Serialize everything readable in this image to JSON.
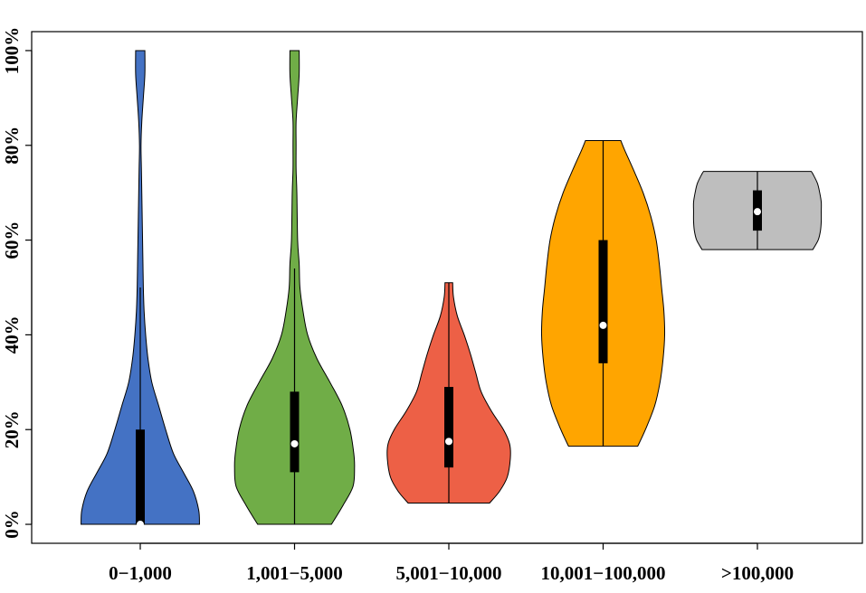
{
  "chart_data": {
    "type": "violin",
    "title": "",
    "xlabel": "",
    "ylabel": "",
    "ylim": [
      -4,
      104
    ],
    "y_ticks": [
      "0%",
      "20%",
      "40%",
      "60%",
      "80%",
      "100%"
    ],
    "y_tick_values": [
      0,
      20,
      40,
      60,
      80,
      100
    ],
    "categories": [
      "0−1,000",
      "1,001−5,000",
      "5,001−10,000",
      "10,001−100,000",
      ">100,000"
    ],
    "series": [
      {
        "color": "#4472C4",
        "min": 0,
        "q1": 0,
        "median": 0,
        "q3": 20,
        "whisker_low": 0,
        "whisker_high": 50,
        "max": 100,
        "density": [
          [
            0,
            0.77
          ],
          [
            3,
            0.76
          ],
          [
            7,
            0.69
          ],
          [
            11,
            0.56
          ],
          [
            15,
            0.43
          ],
          [
            20,
            0.33
          ],
          [
            25,
            0.24
          ],
          [
            30,
            0.15
          ],
          [
            35,
            0.1
          ],
          [
            40,
            0.07
          ],
          [
            45,
            0.05
          ],
          [
            50,
            0.04
          ],
          [
            55,
            0.035
          ],
          [
            60,
            0.03
          ],
          [
            70,
            0.02
          ],
          [
            75,
            0.015
          ],
          [
            80,
            0.01
          ],
          [
            85,
            0.02
          ],
          [
            90,
            0.04
          ],
          [
            95,
            0.06
          ],
          [
            100,
            0.06
          ]
        ]
      },
      {
        "color": "#70AD47",
        "min": 0,
        "q1": 11,
        "median": 17,
        "q3": 28,
        "whisker_low": 0,
        "whisker_high": 54,
        "max": 100,
        "density": [
          [
            0,
            0.48
          ],
          [
            4,
            0.63
          ],
          [
            8,
            0.76
          ],
          [
            12,
            0.78
          ],
          [
            15,
            0.77
          ],
          [
            20,
            0.72
          ],
          [
            25,
            0.62
          ],
          [
            30,
            0.46
          ],
          [
            35,
            0.29
          ],
          [
            40,
            0.17
          ],
          [
            45,
            0.11
          ],
          [
            50,
            0.07
          ],
          [
            55,
            0.06
          ],
          [
            60,
            0.04
          ],
          [
            70,
            0.03
          ],
          [
            75,
            0.02
          ],
          [
            80,
            0.02
          ],
          [
            85,
            0.02
          ],
          [
            90,
            0.04
          ],
          [
            95,
            0.06
          ],
          [
            100,
            0.06
          ]
        ]
      },
      {
        "color": "#ED6046",
        "min": 4.5,
        "q1": 12,
        "median": 17.5,
        "q3": 29,
        "whisker_low": 4.5,
        "whisker_high": 51,
        "max": 51,
        "density": [
          [
            4.5,
            0.53
          ],
          [
            7,
            0.66
          ],
          [
            10,
            0.76
          ],
          [
            14,
            0.8
          ],
          [
            17,
            0.79
          ],
          [
            20,
            0.71
          ],
          [
            24,
            0.55
          ],
          [
            28,
            0.42
          ],
          [
            32,
            0.35
          ],
          [
            36,
            0.28
          ],
          [
            40,
            0.2
          ],
          [
            44,
            0.11
          ],
          [
            48,
            0.06
          ],
          [
            51,
            0.05
          ]
        ]
      },
      {
        "color": "#FFA500",
        "min": 16.5,
        "q1": 34,
        "median": 42,
        "q3": 60,
        "whisker_low": 16.5,
        "whisker_high": 81,
        "max": 81,
        "density": [
          [
            16.5,
            0.45
          ],
          [
            20,
            0.55
          ],
          [
            25,
            0.67
          ],
          [
            30,
            0.74
          ],
          [
            35,
            0.78
          ],
          [
            40,
            0.8
          ],
          [
            45,
            0.79
          ],
          [
            50,
            0.76
          ],
          [
            55,
            0.73
          ],
          [
            60,
            0.69
          ],
          [
            65,
            0.62
          ],
          [
            70,
            0.52
          ],
          [
            75,
            0.39
          ],
          [
            79,
            0.28
          ],
          [
            81,
            0.23
          ]
        ]
      },
      {
        "color": "#BEBEBE",
        "min": 58,
        "q1": 62,
        "median": 66,
        "q3": 70.5,
        "whisker_low": 58,
        "whisker_high": 74.5,
        "max": 74.5,
        "density": [
          [
            58,
            0.72
          ],
          [
            60,
            0.79
          ],
          [
            62,
            0.82
          ],
          [
            64,
            0.83
          ],
          [
            66,
            0.83
          ],
          [
            68,
            0.83
          ],
          [
            70,
            0.81
          ],
          [
            72,
            0.78
          ],
          [
            74,
            0.72
          ],
          [
            74.5,
            0.7
          ]
        ]
      }
    ],
    "grid": false,
    "legend": "none"
  }
}
